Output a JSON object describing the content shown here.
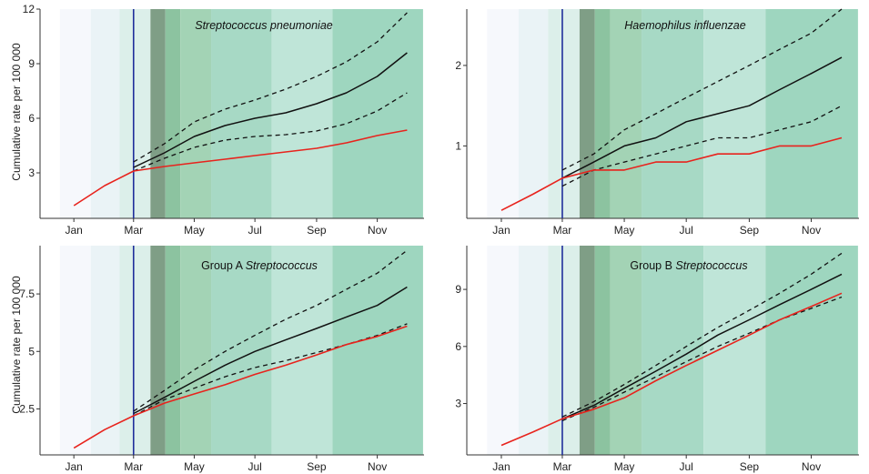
{
  "ylabel": "Cumulative rate per 100 000",
  "colors": {
    "observed": "#e8231d",
    "expected": "#111111",
    "intervention_line": "#1f2d9b",
    "bands": [
      "#f6f8fc",
      "#eaf3f6",
      "#dcefea",
      "#7f9e86",
      "#8cc3a0",
      "#a3d3b5",
      "#a7d9c5",
      "#bfe5d8",
      "#9ed6bf"
    ]
  },
  "band_edges": [
    "2020-01-01",
    "2020-02-01",
    "2020-03-01",
    "2020-04-01",
    "2020-04-16",
    "2020-05-01",
    "2020-06-01",
    "2020-08-01",
    "2020-10-01",
    "2020-12-31"
  ],
  "chart_data": [
    {
      "type": "line",
      "title": "Streptococcus pneumoniae",
      "title_italic": true,
      "xlabel": "",
      "ylabel": "Cumulative rate per 100 000",
      "x_ticks": [
        "Jan",
        "Mar",
        "May",
        "Jul",
        "Sep",
        "Nov"
      ],
      "y_ticks": [
        3,
        6,
        9,
        12
      ],
      "ylim": [
        0.5,
        12
      ],
      "intervention": "Mar",
      "series": [
        {
          "role": "observed",
          "x": [
            "Jan",
            "Feb",
            "Mar",
            "Apr",
            "May",
            "Jun",
            "Jul",
            "Aug",
            "Sep",
            "Oct",
            "Nov",
            "Dec"
          ],
          "values": [
            1.2,
            2.3,
            3.1,
            3.35,
            3.55,
            3.75,
            3.95,
            4.15,
            4.35,
            4.65,
            5.05,
            5.35
          ]
        },
        {
          "role": "expected",
          "x": [
            "Mar",
            "Apr",
            "May",
            "Jun",
            "Jul",
            "Aug",
            "Sep",
            "Oct",
            "Nov",
            "Dec"
          ],
          "values": [
            3.3,
            4.1,
            5.0,
            5.6,
            6.0,
            6.3,
            6.8,
            7.4,
            8.3,
            9.6
          ]
        },
        {
          "role": "upper",
          "x": [
            "Mar",
            "Apr",
            "May",
            "Jun",
            "Jul",
            "Aug",
            "Sep",
            "Oct",
            "Nov",
            "Dec"
          ],
          "values": [
            3.6,
            4.6,
            5.8,
            6.5,
            7.0,
            7.6,
            8.3,
            9.1,
            10.2,
            11.8
          ]
        },
        {
          "role": "lower",
          "x": [
            "Mar",
            "Apr",
            "May",
            "Jun",
            "Jul",
            "Aug",
            "Sep",
            "Oct",
            "Nov",
            "Dec"
          ],
          "values": [
            3.1,
            3.8,
            4.4,
            4.8,
            5.0,
            5.1,
            5.3,
            5.7,
            6.4,
            7.4
          ]
        }
      ]
    },
    {
      "type": "line",
      "title": "Haemophilus influenzae",
      "title_italic": true,
      "xlabel": "",
      "ylabel": "",
      "x_ticks": [
        "Jan",
        "Mar",
        "May",
        "Jul",
        "Sep",
        "Nov"
      ],
      "y_ticks": [
        1,
        2
      ],
      "ylim": [
        0.1,
        2.7
      ],
      "intervention": "Mar",
      "series": [
        {
          "role": "observed",
          "x": [
            "Jan",
            "Feb",
            "Mar",
            "Apr",
            "May",
            "Jun",
            "Jul",
            "Aug",
            "Sep",
            "Oct",
            "Nov",
            "Dec"
          ],
          "values": [
            0.2,
            0.4,
            0.6,
            0.7,
            0.7,
            0.8,
            0.8,
            0.9,
            0.9,
            1.0,
            1.0,
            1.1
          ]
        },
        {
          "role": "expected",
          "x": [
            "Mar",
            "Apr",
            "May",
            "Jun",
            "Jul",
            "Aug",
            "Sep",
            "Oct",
            "Nov",
            "Dec"
          ],
          "values": [
            0.6,
            0.8,
            1.0,
            1.1,
            1.3,
            1.4,
            1.5,
            1.7,
            1.9,
            2.1
          ]
        },
        {
          "role": "upper",
          "x": [
            "Mar",
            "Apr",
            "May",
            "Jun",
            "Jul",
            "Aug",
            "Sep",
            "Oct",
            "Nov",
            "Dec"
          ],
          "values": [
            0.7,
            0.9,
            1.2,
            1.4,
            1.6,
            1.8,
            2.0,
            2.2,
            2.4,
            2.7
          ]
        },
        {
          "role": "lower",
          "x": [
            "Mar",
            "Apr",
            "May",
            "Jun",
            "Jul",
            "Aug",
            "Sep",
            "Oct",
            "Nov",
            "Dec"
          ],
          "values": [
            0.5,
            0.7,
            0.8,
            0.9,
            1.0,
            1.1,
            1.1,
            1.2,
            1.3,
            1.5
          ]
        }
      ]
    },
    {
      "type": "line",
      "title_prefix": "Group A",
      "title_italic_part": "Streptococcus",
      "xlabel": "",
      "ylabel": "Cumulative rate per 100 000",
      "x_ticks": [
        "Jan",
        "Mar",
        "May",
        "Jul",
        "Sep",
        "Nov"
      ],
      "y_ticks": [
        2.5,
        5.0,
        7.5
      ],
      "ylim": [
        0.5,
        9.6
      ],
      "intervention": "Mar",
      "series": [
        {
          "role": "observed",
          "x": [
            "Jan",
            "Feb",
            "Mar",
            "Apr",
            "May",
            "Jun",
            "Jul",
            "Aug",
            "Sep",
            "Oct",
            "Nov",
            "Dec"
          ],
          "values": [
            0.8,
            1.6,
            2.2,
            2.75,
            3.15,
            3.55,
            4.0,
            4.4,
            4.85,
            5.3,
            5.65,
            6.1
          ]
        },
        {
          "role": "expected",
          "x": [
            "Mar",
            "Apr",
            "May",
            "Jun",
            "Jul",
            "Aug",
            "Sep",
            "Oct",
            "Nov",
            "Dec"
          ],
          "values": [
            2.3,
            3.0,
            3.7,
            4.4,
            5.0,
            5.5,
            6.0,
            6.5,
            7.0,
            7.8
          ]
        },
        {
          "role": "upper",
          "x": [
            "Mar",
            "Apr",
            "May",
            "Jun",
            "Jul",
            "Aug",
            "Sep",
            "Oct",
            "Nov",
            "Dec"
          ],
          "values": [
            2.4,
            3.3,
            4.2,
            5.0,
            5.7,
            6.4,
            7.0,
            7.7,
            8.4,
            9.4
          ]
        },
        {
          "role": "lower",
          "x": [
            "Mar",
            "Apr",
            "May",
            "Jun",
            "Jul",
            "Aug",
            "Sep",
            "Oct",
            "Nov",
            "Dec"
          ],
          "values": [
            2.2,
            2.9,
            3.4,
            3.9,
            4.3,
            4.6,
            4.95,
            5.3,
            5.7,
            6.2
          ]
        }
      ]
    },
    {
      "type": "line",
      "title_prefix": "Group B",
      "title_italic_part": "Streptococcus",
      "xlabel": "",
      "ylabel": "",
      "x_ticks": [
        "Jan",
        "Mar",
        "May",
        "Jul",
        "Sep",
        "Nov"
      ],
      "y_ticks": [
        3,
        6,
        9
      ],
      "ylim": [
        0.3,
        11.3
      ],
      "intervention": "Mar",
      "series": [
        {
          "role": "observed",
          "x": [
            "Jan",
            "Feb",
            "Mar",
            "Apr",
            "May",
            "Jun",
            "Jul",
            "Aug",
            "Sep",
            "Oct",
            "Nov",
            "Dec"
          ],
          "values": [
            0.8,
            1.5,
            2.2,
            2.7,
            3.3,
            4.2,
            5.0,
            5.8,
            6.6,
            7.4,
            8.1,
            8.8
          ]
        },
        {
          "role": "expected",
          "x": [
            "Mar",
            "Apr",
            "May",
            "Jun",
            "Jul",
            "Aug",
            "Sep",
            "Oct",
            "Nov",
            "Dec"
          ],
          "values": [
            2.2,
            2.9,
            3.8,
            4.7,
            5.6,
            6.6,
            7.4,
            8.2,
            9.0,
            9.8
          ]
        },
        {
          "role": "upper",
          "x": [
            "Mar",
            "Apr",
            "May",
            "Jun",
            "Jul",
            "Aug",
            "Sep",
            "Oct",
            "Nov",
            "Dec"
          ],
          "values": [
            2.3,
            3.1,
            4.0,
            5.0,
            6.0,
            7.0,
            7.9,
            8.8,
            9.8,
            10.9
          ]
        },
        {
          "role": "lower",
          "x": [
            "Mar",
            "Apr",
            "May",
            "Jun",
            "Jul",
            "Aug",
            "Sep",
            "Oct",
            "Nov",
            "Dec"
          ],
          "values": [
            2.1,
            2.8,
            3.6,
            4.4,
            5.2,
            6.0,
            6.7,
            7.4,
            8.0,
            8.6
          ]
        }
      ]
    }
  ]
}
